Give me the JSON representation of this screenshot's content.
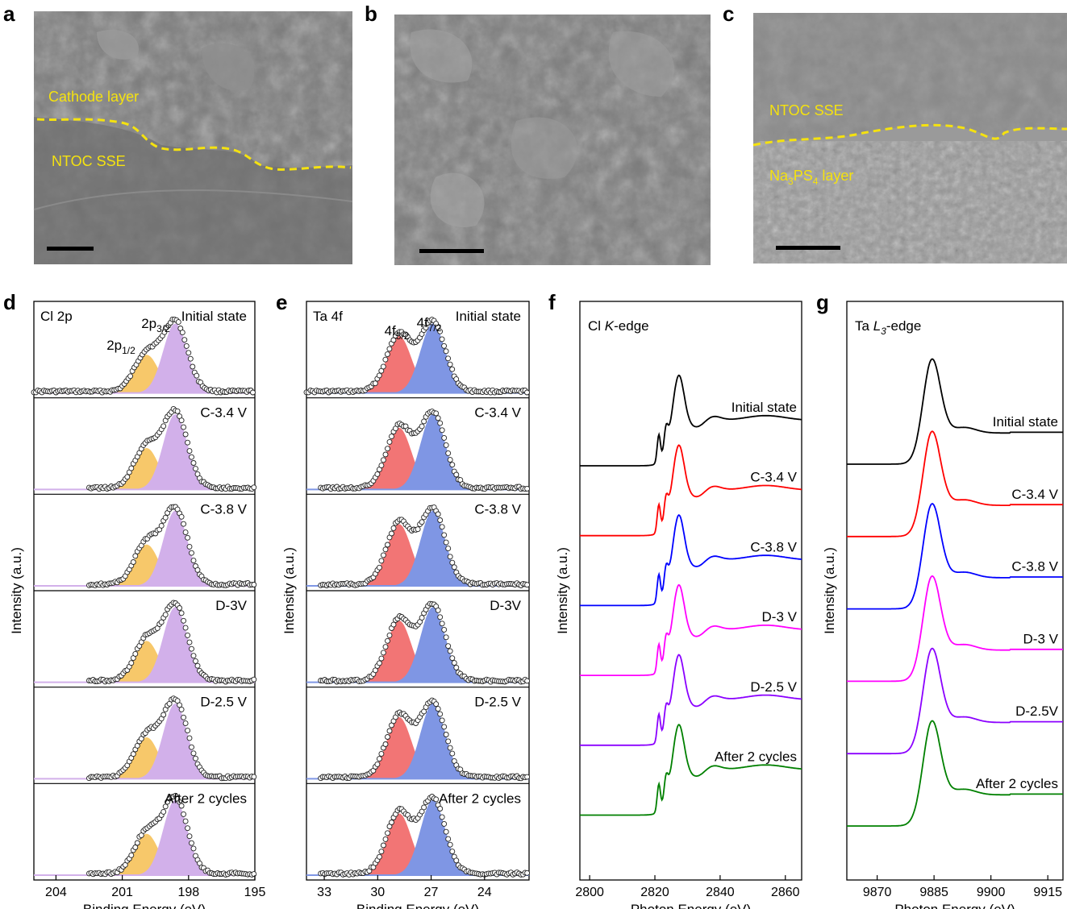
{
  "sem_panels": [
    {
      "id": "a",
      "annotations": [
        "Cathode layer",
        "NTOC SSE"
      ]
    },
    {
      "id": "b",
      "annotations": []
    },
    {
      "id": "c",
      "annotations": [
        "NTOC SSE",
        "Na",
        "3",
        "PS",
        "4",
        " layer"
      ]
    }
  ],
  "colors": {
    "yellow_peak": "#f7c86a",
    "purple_peak": "#d2b0ea",
    "red_peak": "#f27575",
    "blue_peak": "#7f96e4",
    "sem_overlay": "#f5e20f",
    "black": "#000000",
    "red": "#ff0000",
    "blue": "#0000ff",
    "magenta": "#ff00ff",
    "violet": "#8b00ff",
    "green": "#008000"
  },
  "chart_data": [
    {
      "id": "d",
      "type": "area",
      "title": "Cl 2p",
      "xlabel": "Binding Energy (eV)",
      "ylabel": "Intensity (a.u.)",
      "xlim": [
        205,
        195
      ],
      "xticks": [
        "204",
        "201",
        "198",
        "195"
      ],
      "peak_labels": [
        {
          "base": "2p",
          "sub": "1/2"
        },
        {
          "base": "2p",
          "sub": "3/2"
        }
      ],
      "peaks": [
        {
          "label": "2p1/2",
          "center": 199.9,
          "color": "#f7c86a"
        },
        {
          "label": "2p3/2",
          "center": 198.6,
          "color": "#d2b0ea"
        }
      ],
      "series": [
        {
          "name": "Initial state"
        },
        {
          "name": "C-3.4 V"
        },
        {
          "name": "C-3.8 V"
        },
        {
          "name": "D-3V"
        },
        {
          "name": "D-2.5 V"
        },
        {
          "name": "After 2 cycles"
        }
      ]
    },
    {
      "id": "e",
      "type": "area",
      "title": "Ta 4f",
      "xlabel": "Binding Energy (eV)",
      "ylabel": "Intensity (a.u.)",
      "xlim": [
        34,
        21.5
      ],
      "xticks": [
        "33",
        "30",
        "27",
        "24"
      ],
      "peak_labels": [
        {
          "base": "4f",
          "sub": "5/2"
        },
        {
          "base": "4f",
          "sub": "7/2"
        }
      ],
      "peaks": [
        {
          "label": "4f5/2",
          "center": 28.8,
          "color": "#f27575"
        },
        {
          "label": "4f7/2",
          "center": 26.9,
          "color": "#7f96e4"
        }
      ],
      "series": [
        {
          "name": "Initial state"
        },
        {
          "name": "C-3.4 V"
        },
        {
          "name": "C-3.8 V"
        },
        {
          "name": "D-3V"
        },
        {
          "name": "D-2.5 V"
        },
        {
          "name": "After 2 cycles"
        }
      ]
    },
    {
      "id": "f",
      "type": "line",
      "title_parts": [
        "Cl ",
        "K",
        "-edge"
      ],
      "xlabel": "Photon Energy (eV)",
      "ylabel": "Intensity (a.u.)",
      "xlim": [
        2797,
        2865
      ],
      "xticks": [
        2800,
        2820,
        2840,
        2860
      ],
      "series": [
        {
          "name": "Initial state",
          "color": "#000000"
        },
        {
          "name": "C-3.4 V",
          "color": "#ff0000"
        },
        {
          "name": "C-3.8 V",
          "color": "#0000ff"
        },
        {
          "name": "D-3 V",
          "color": "#ff00ff"
        },
        {
          "name": "D-2.5 V",
          "color": "#8b00ff"
        },
        {
          "name": "After 2 cycles",
          "color": "#008000"
        }
      ]
    },
    {
      "id": "g",
      "type": "line",
      "title_parts": [
        "Ta ",
        "L",
        "3",
        "-edge"
      ],
      "xlabel": "Photon Energy (eV)",
      "ylabel": "Intensity (a.u.)",
      "xlim": [
        9862,
        9919
      ],
      "xticks": [
        9870,
        9885,
        9900,
        9915
      ],
      "series": [
        {
          "name": "Initial state",
          "color": "#000000"
        },
        {
          "name": "C-3.4 V",
          "color": "#ff0000"
        },
        {
          "name": "C-3.8 V",
          "color": "#0000ff"
        },
        {
          "name": "D-3 V",
          "color": "#ff00ff"
        },
        {
          "name": "D-2.5V",
          "color": "#8b00ff"
        },
        {
          "name": "After 2 cycles",
          "color": "#008000"
        }
      ]
    }
  ]
}
